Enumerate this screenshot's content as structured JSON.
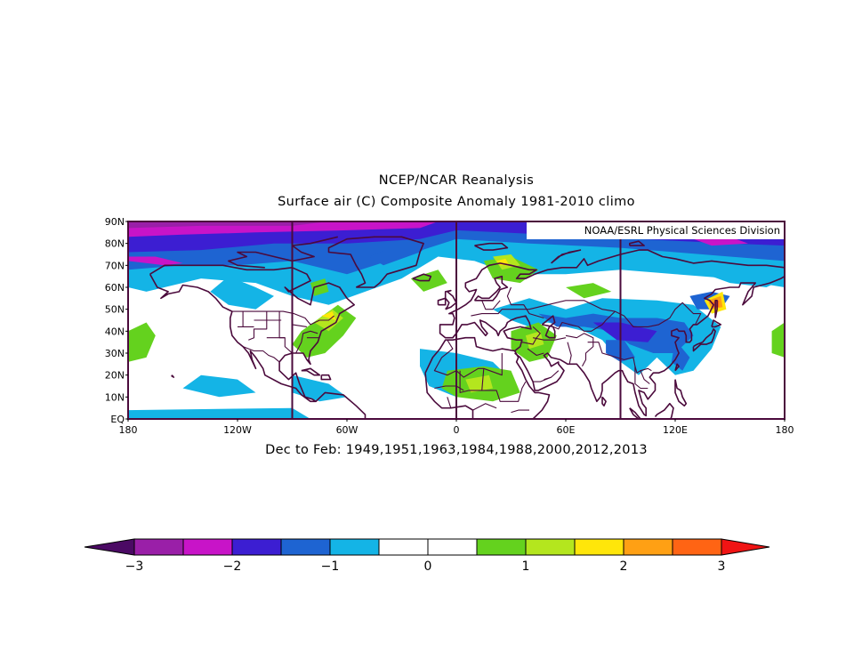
{
  "title_line1": "NCEP/NCAR Reanalysis",
  "title_line2": "Surface air (C) Composite Anomaly 1981-2010 climo",
  "credit": "NOAA/ESRL Physical Sciences Division",
  "subtitle": "Dec to Feb: 1949,1951,1963,1984,1988,2000,2012,2013",
  "lat_labels": [
    "90N",
    "80N",
    "70N",
    "60N",
    "50N",
    "40N",
    "30N",
    "20N",
    "10N",
    "EQ"
  ],
  "lon_labels": [
    "180",
    "120W",
    "60W",
    "0",
    "60E",
    "120E",
    "180"
  ],
  "colorbar": {
    "labels": [
      "-3",
      "-2",
      "-1",
      "0",
      "1",
      "2",
      "3"
    ],
    "colors": [
      "#9a1fa8",
      "#c814c8",
      "#3c1ed2",
      "#1e64d2",
      "#14b4e6",
      "#ffffff",
      "#ffffff",
      "#64d21e",
      "#b4e61e",
      "#ffe60a",
      "#ffa014",
      "#ff6414"
    ],
    "low_color": "#4b0a64",
    "high_color": "#f01414"
  },
  "map": {
    "extent": {
      "lon": [
        -180,
        180
      ],
      "lat": [
        0,
        90
      ]
    },
    "meridian_lines": [
      -90,
      0,
      90
    ],
    "anomaly_patches": [
      {
        "color": "#14b4e6",
        "poly": [
          [
            -180,
            90
          ],
          [
            180,
            90
          ],
          [
            180,
            60
          ],
          [
            150,
            64
          ],
          [
            120,
            66
          ],
          [
            90,
            68
          ],
          [
            60,
            66
          ],
          [
            30,
            66
          ],
          [
            10,
            72
          ],
          [
            -10,
            74
          ],
          [
            -30,
            64
          ],
          [
            -50,
            58
          ],
          [
            -70,
            52
          ],
          [
            -90,
            56
          ],
          [
            -110,
            62
          ],
          [
            -140,
            64
          ],
          [
            -170,
            58
          ],
          [
            -180,
            60
          ]
        ]
      },
      {
        "color": "#1e64d2",
        "poly": [
          [
            -180,
            90
          ],
          [
            180,
            90
          ],
          [
            180,
            72
          ],
          [
            150,
            74
          ],
          [
            120,
            76
          ],
          [
            90,
            78
          ],
          [
            40,
            80
          ],
          [
            0,
            82
          ],
          [
            -30,
            74
          ],
          [
            -60,
            66
          ],
          [
            -90,
            72
          ],
          [
            -120,
            70
          ],
          [
            -150,
            70
          ],
          [
            -180,
            68
          ]
        ]
      },
      {
        "color": "#3c1ed2",
        "poly": [
          [
            -180,
            90
          ],
          [
            180,
            90
          ],
          [
            180,
            79
          ],
          [
            150,
            80
          ],
          [
            100,
            82
          ],
          [
            50,
            84
          ],
          [
            0,
            86
          ],
          [
            -20,
            82
          ],
          [
            -60,
            80
          ],
          [
            -100,
            80
          ],
          [
            -140,
            77
          ],
          [
            -180,
            76
          ]
        ]
      },
      {
        "color": "#c814c8",
        "poly": [
          [
            -180,
            90
          ],
          [
            -10,
            90
          ],
          [
            -20,
            87
          ],
          [
            -60,
            86
          ],
          [
            -110,
            85
          ],
          [
            -150,
            84
          ],
          [
            -180,
            83
          ]
        ]
      },
      {
        "color": "#c814c8",
        "poly": [
          [
            -180,
            72
          ],
          [
            -160,
            70
          ],
          [
            -150,
            71
          ],
          [
            -165,
            74
          ],
          [
            -180,
            74
          ]
        ]
      },
      {
        "color": "#c814c8",
        "poly": [
          [
            130,
            82
          ],
          [
            140,
            79
          ],
          [
            160,
            80
          ],
          [
            150,
            83
          ]
        ]
      },
      {
        "color": "#9a1fa8",
        "poly": [
          [
            -180,
            90
          ],
          [
            -70,
            90
          ],
          [
            -90,
            88
          ],
          [
            -140,
            88
          ],
          [
            -180,
            87
          ]
        ]
      },
      {
        "color": "#14b4e6",
        "poly": [
          [
            -140,
            20
          ],
          [
            -120,
            18
          ],
          [
            -110,
            12
          ],
          [
            -130,
            10
          ],
          [
            -150,
            14
          ]
        ]
      },
      {
        "color": "#14b4e6",
        "poly": [
          [
            -180,
            4
          ],
          [
            -90,
            5
          ],
          [
            -80,
            0
          ],
          [
            -180,
            0
          ]
        ]
      },
      {
        "color": "#14b4e6",
        "poly": [
          [
            -125,
            65
          ],
          [
            -110,
            60
          ],
          [
            -100,
            56
          ],
          [
            -110,
            50
          ],
          [
            -125,
            52
          ],
          [
            -135,
            58
          ]
        ]
      },
      {
        "color": "#14b4e6",
        "poly": [
          [
            -20,
            32
          ],
          [
            0,
            30
          ],
          [
            20,
            26
          ],
          [
            30,
            18
          ],
          [
            20,
            12
          ],
          [
            0,
            10
          ],
          [
            -15,
            15
          ],
          [
            -20,
            24
          ]
        ]
      },
      {
        "color": "#14b4e6",
        "poly": [
          [
            20,
            50
          ],
          [
            40,
            55
          ],
          [
            60,
            50
          ],
          [
            80,
            55
          ],
          [
            110,
            54
          ],
          [
            130,
            52
          ],
          [
            145,
            42
          ],
          [
            140,
            32
          ],
          [
            130,
            22
          ],
          [
            120,
            20
          ],
          [
            110,
            28
          ],
          [
            100,
            20
          ],
          [
            90,
            26
          ],
          [
            80,
            36
          ],
          [
            70,
            40
          ],
          [
            60,
            42
          ],
          [
            50,
            44
          ],
          [
            40,
            42
          ],
          [
            30,
            45
          ]
        ]
      },
      {
        "color": "#14b4e6",
        "poly": [
          [
            130,
            68
          ],
          [
            150,
            62
          ],
          [
            170,
            60
          ],
          [
            180,
            64
          ],
          [
            180,
            70
          ],
          [
            160,
            72
          ],
          [
            140,
            72
          ]
        ]
      },
      {
        "color": "#14b4e6",
        "poly": [
          [
            -90,
            20
          ],
          [
            -70,
            16
          ],
          [
            -60,
            10
          ],
          [
            -75,
            8
          ],
          [
            -90,
            12
          ]
        ]
      },
      {
        "color": "#1e64d2",
        "poly": [
          [
            45,
            48
          ],
          [
            60,
            46
          ],
          [
            75,
            48
          ],
          [
            90,
            46
          ],
          [
            110,
            46
          ],
          [
            125,
            44
          ],
          [
            130,
            38
          ],
          [
            120,
            30
          ],
          [
            108,
            30
          ],
          [
            95,
            34
          ],
          [
            85,
            40
          ],
          [
            70,
            42
          ],
          [
            55,
            42
          ]
        ]
      },
      {
        "color": "#1e64d2",
        "poly": [
          [
            82,
            36
          ],
          [
            92,
            36
          ],
          [
            98,
            28
          ],
          [
            90,
            26
          ],
          [
            82,
            30
          ]
        ]
      },
      {
        "color": "#1e64d2",
        "poly": [
          [
            120,
            36
          ],
          [
            128,
            28
          ],
          [
            124,
            22
          ],
          [
            118,
            26
          ]
        ]
      },
      {
        "color": "#1e64d2",
        "poly": [
          [
            128,
            56
          ],
          [
            140,
            58
          ],
          [
            150,
            56
          ],
          [
            145,
            50
          ],
          [
            132,
            50
          ]
        ]
      },
      {
        "color": "#1e64d2",
        "poly": [
          [
            -30,
            80
          ],
          [
            -10,
            82
          ],
          [
            -20,
            76
          ],
          [
            -40,
            70
          ],
          [
            -48,
            74
          ]
        ]
      },
      {
        "color": "#3c1ed2",
        "poly": [
          [
            75,
            44
          ],
          [
            90,
            44
          ],
          [
            110,
            40
          ],
          [
            105,
            35
          ],
          [
            88,
            36
          ]
        ]
      },
      {
        "color": "#64d21e",
        "poly": [
          [
            -180,
            40
          ],
          [
            -170,
            44
          ],
          [
            -165,
            38
          ],
          [
            -170,
            28
          ],
          [
            -180,
            26
          ]
        ]
      },
      {
        "color": "#64d21e",
        "poly": [
          [
            180,
            28
          ],
          [
            173,
            30
          ],
          [
            173,
            40
          ],
          [
            180,
            44
          ]
        ]
      },
      {
        "color": "#64d21e",
        "poly": [
          [
            -85,
            40
          ],
          [
            -75,
            46
          ],
          [
            -65,
            52
          ],
          [
            -55,
            46
          ],
          [
            -62,
            38
          ],
          [
            -72,
            30
          ],
          [
            -82,
            28
          ],
          [
            -90,
            34
          ]
        ]
      },
      {
        "color": "#64d21e",
        "poly": [
          [
            -80,
            62
          ],
          [
            -72,
            64
          ],
          [
            -70,
            58
          ],
          [
            -78,
            56
          ]
        ]
      },
      {
        "color": "#64d21e",
        "poly": [
          [
            15,
            72
          ],
          [
            30,
            74
          ],
          [
            45,
            68
          ],
          [
            35,
            62
          ],
          [
            20,
            64
          ]
        ]
      },
      {
        "color": "#64d21e",
        "poly": [
          [
            60,
            60
          ],
          [
            75,
            62
          ],
          [
            85,
            58
          ],
          [
            70,
            55
          ]
        ]
      },
      {
        "color": "#64d21e",
        "poly": [
          [
            30,
            40
          ],
          [
            45,
            44
          ],
          [
            55,
            38
          ],
          [
            50,
            28
          ],
          [
            40,
            26
          ],
          [
            30,
            32
          ]
        ]
      },
      {
        "color": "#64d21e",
        "poly": [
          [
            -5,
            22
          ],
          [
            15,
            24
          ],
          [
            30,
            22
          ],
          [
            35,
            12
          ],
          [
            20,
            8
          ],
          [
            0,
            10
          ],
          [
            -8,
            14
          ]
        ]
      },
      {
        "color": "#64d21e",
        "poly": [
          [
            -25,
            64
          ],
          [
            -10,
            68
          ],
          [
            -5,
            62
          ],
          [
            -18,
            58
          ]
        ]
      },
      {
        "color": "#b4e61e",
        "poly": [
          [
            -78,
            44
          ],
          [
            -68,
            50
          ],
          [
            -62,
            46
          ],
          [
            -70,
            40
          ]
        ]
      },
      {
        "color": "#b4e61e",
        "poly": [
          [
            20,
            74
          ],
          [
            30,
            75
          ],
          [
            35,
            70
          ],
          [
            25,
            68
          ]
        ]
      },
      {
        "color": "#b4e61e",
        "poly": [
          [
            5,
            18
          ],
          [
            18,
            20
          ],
          [
            20,
            14
          ],
          [
            8,
            12
          ]
        ]
      },
      {
        "color": "#b4e61e",
        "poly": [
          [
            38,
            38
          ],
          [
            46,
            40
          ],
          [
            48,
            34
          ],
          [
            40,
            32
          ]
        ]
      },
      {
        "color": "#ffe60a",
        "poly": [
          [
            -74,
            47
          ],
          [
            -68,
            49
          ],
          0,
          [
            -66,
            45
          ]
        ]
      },
      {
        "color": "#ffe60a",
        "poly": [
          [
            136,
            54
          ],
          [
            146,
            58
          ],
          [
            148,
            50
          ],
          [
            140,
            48
          ]
        ]
      },
      {
        "color": "#ffa014",
        "poly": [
          [
            138,
            54
          ],
          [
            145,
            56
          ],
          [
            146,
            51
          ],
          [
            140,
            50
          ]
        ]
      },
      {
        "color": "#ff6414",
        "poly": [
          [
            140,
            53
          ],
          [
            144,
            54
          ],
          [
            144,
            51
          ],
          [
            141,
            51
          ]
        ]
      },
      {
        "color": "#ffe60a",
        "poly": [
          [
            22,
            72
          ],
          [
            27,
            73
          ],
          [
            29,
            70
          ],
          [
            24,
            70
          ]
        ]
      }
    ]
  }
}
